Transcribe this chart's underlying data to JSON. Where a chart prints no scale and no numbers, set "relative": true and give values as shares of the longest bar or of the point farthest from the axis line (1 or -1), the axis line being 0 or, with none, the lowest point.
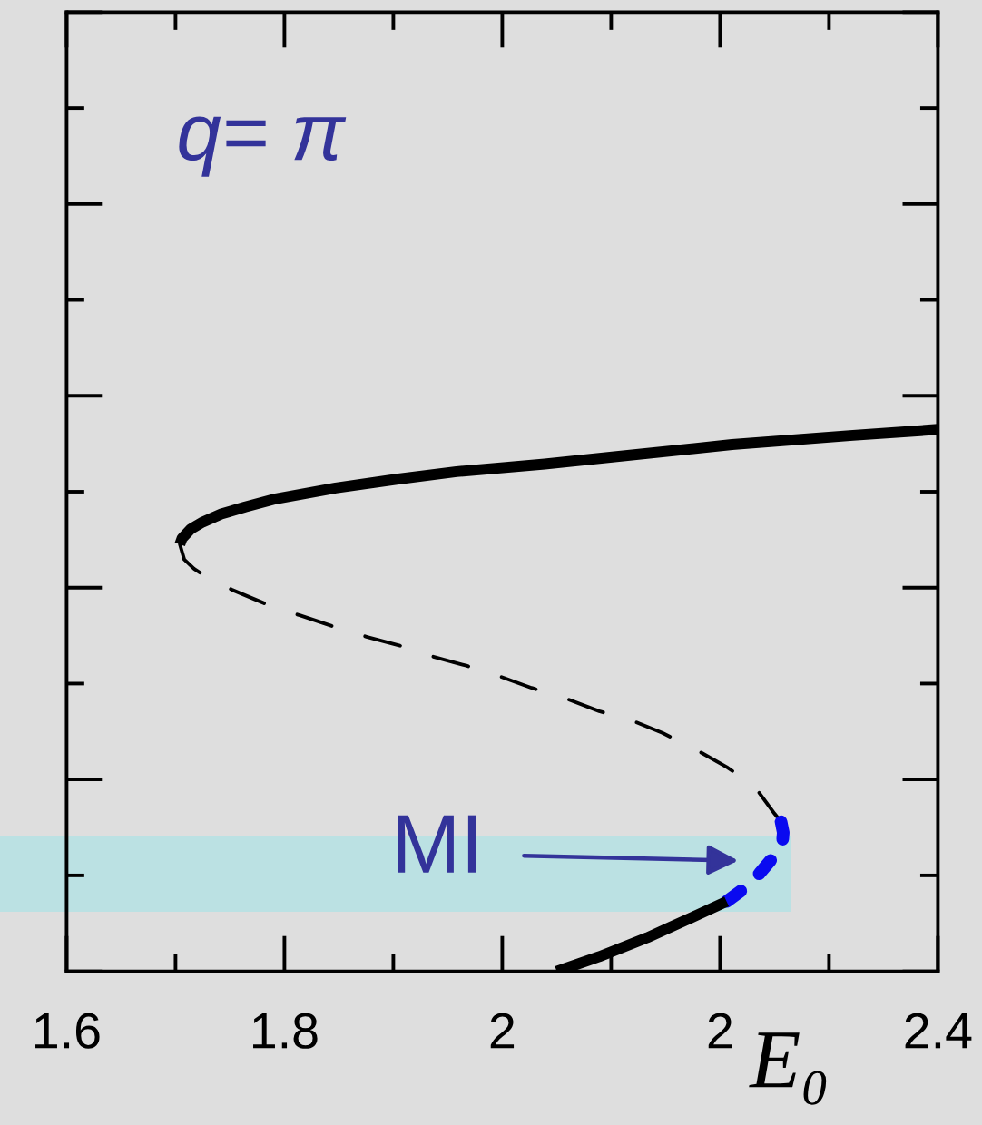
{
  "chart_data": {
    "type": "line",
    "relative": true,
    "tick_labels": "x",
    "xlabel": "E₀",
    "xlim": [
      1.6,
      2.4
    ],
    "xticks": [
      1.6,
      {
        "value": 1.7,
        "label": null
      },
      1.8,
      {
        "value": 1.9,
        "label": null
      },
      2,
      {
        "value": 2.1,
        "label": null
      },
      {
        "value": 2.2,
        "label": "2"
      },
      {
        "value": 2.3,
        "label": null
      },
      2.4
    ],
    "series": [
      {
        "color": "#000000",
        "line_style": "solid",
        "x": [
          1.704,
          1.706,
          1.714,
          1.725,
          1.742,
          1.764,
          1.792,
          1.847,
          1.903,
          1.958,
          2.039,
          2.101,
          2.211,
          2.322,
          2.4
        ],
        "values": [
          0.788,
          0.799,
          0.816,
          0.829,
          0.844,
          0.857,
          0.872,
          0.892,
          0.908,
          0.922,
          0.936,
          0.949,
          0.972,
          0.989,
          1
        ]
      },
      {
        "color": "#000000",
        "line_style": "dashed",
        "x": [
          1.704,
          1.708,
          1.717,
          1.726,
          1.752,
          1.784,
          1.814,
          1.844,
          1.876,
          1.906,
          1.936,
          1.967,
          1.994,
          2.027,
          2.059,
          2.089,
          2.119,
          2.147,
          2.177,
          2.206,
          2.231,
          2.25,
          2.256
        ],
        "values": [
          0.788,
          0.76,
          0.743,
          0.731,
          0.704,
          0.677,
          0.657,
          0.637,
          0.617,
          0.601,
          0.581,
          0.564,
          0.547,
          0.523,
          0.503,
          0.48,
          0.463,
          0.44,
          0.41,
          0.377,
          0.343,
          0.291,
          0.276
        ]
      },
      {
        "color": "#0a0af0",
        "line_style": "dashed",
        "x": [
          2.256,
          2.258,
          2.257,
          2.25,
          2.236,
          2.225,
          2.206
        ],
        "values": [
          0.276,
          0.256,
          0.232,
          0.213,
          0.18,
          0.157,
          0.129
        ]
      },
      {
        "color": "#000000",
        "line_style": "solid",
        "x": [
          2.206,
          2.178,
          2.133,
          2.089,
          2.05
        ],
        "values": [
          0.129,
          0.103,
          0.062,
          0.027,
          0
        ]
      }
    ],
    "bands": [
      {
        "axis": "y",
        "from": 0.11,
        "to": 0.25,
        "color": "#bbe1e3"
      }
    ],
    "annotations": [
      "q= π",
      "MI"
    ]
  }
}
